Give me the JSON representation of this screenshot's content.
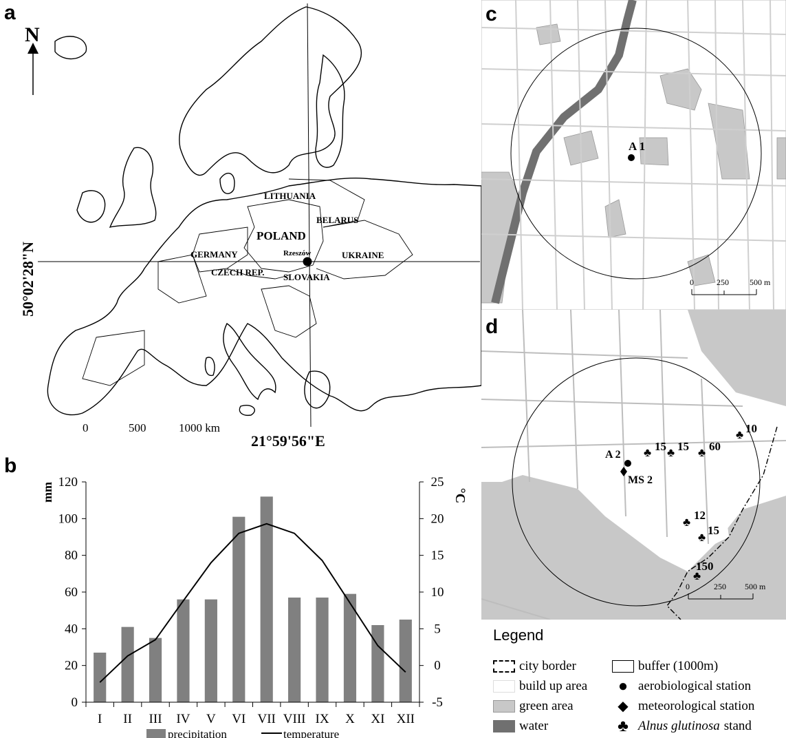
{
  "panels": {
    "a": "a",
    "b": "b",
    "c": "c",
    "d": "d"
  },
  "map_a": {
    "north_label": "N",
    "lat_label": "50°02'28\"N",
    "lon_label": "21°59'56\"E",
    "city": "Rzeszów",
    "countries": [
      "LITHUANIA",
      "BELARUS",
      "POLAND",
      "GERMANY",
      "UKRAINE",
      "CZECH REP.",
      "SLOVAKIA"
    ],
    "scale_ticks": [
      "0",
      "500",
      "1000 km"
    ]
  },
  "chart_data": {
    "type": "bar",
    "categories": [
      "I",
      "II",
      "III",
      "IV",
      "V",
      "VI",
      "VII",
      "VIII",
      "IX",
      "X",
      "XI",
      "XII"
    ],
    "series": [
      {
        "name": "precipitation",
        "type": "bar",
        "axis": "left",
        "values": [
          27,
          41,
          35,
          56,
          56,
          101,
          112,
          57,
          57,
          59,
          42,
          45
        ]
      },
      {
        "name": "temperature",
        "type": "line",
        "axis": "right",
        "values": [
          -2.3,
          1.3,
          3.5,
          8.8,
          14,
          18,
          19.3,
          18,
          14.3,
          8.5,
          2.7,
          -0.9
        ]
      }
    ],
    "ylabel_left": "mm",
    "ylabel_right": "°C",
    "ylim_left": [
      0,
      120
    ],
    "ylim_right": [
      -5,
      25
    ],
    "yticks_left": [
      "0",
      "20",
      "40",
      "60",
      "80",
      "100",
      "120"
    ],
    "yticks_right": [
      "-5",
      "0",
      "5",
      "10",
      "15",
      "20",
      "25"
    ],
    "bar_color": "#808080",
    "line_color": "#000000",
    "legend_position": "bottom"
  },
  "map_c": {
    "station": "A 1",
    "scale_ticks": [
      "0",
      "250",
      "500 m"
    ]
  },
  "map_d": {
    "station": "A 2",
    "met_station": "MS 2",
    "stands": [
      "10",
      "15",
      "15",
      "60",
      "12",
      "15",
      "150"
    ],
    "scale_ticks": [
      "0",
      "250",
      "500 m"
    ]
  },
  "legend": {
    "title": "Legend",
    "items": [
      {
        "label": "city border",
        "symbol": "dashed-border"
      },
      {
        "label": "buffer (1000m)",
        "symbol": "buffer-box"
      },
      {
        "label": "build up area",
        "symbol": "white-box"
      },
      {
        "label": "aerobiological station",
        "symbol": "circle"
      },
      {
        "label": "green area",
        "symbol": "light-gray-box"
      },
      {
        "label": "meteorological station",
        "symbol": "diamond"
      },
      {
        "label": "water",
        "symbol": "dark-gray-box"
      },
      {
        "label": "Alnus glutinosa",
        "label_suffix": "stand",
        "symbol": "club"
      }
    ],
    "colors": {
      "build": "#ffffff",
      "green": "#c8c8c8",
      "water": "#707070"
    }
  }
}
